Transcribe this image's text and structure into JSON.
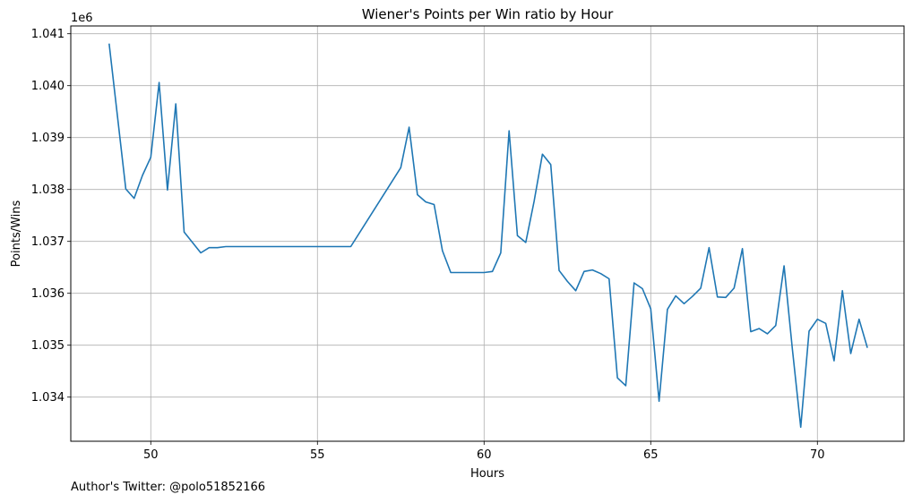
{
  "chart_data": {
    "type": "line",
    "title": "Wiener's Points per Win ratio by Hour",
    "xlabel": "Hours",
    "ylabel": "Points/Wins",
    "y_offset_label": "1e6",
    "y_scale_factor": 1000000,
    "xlim": [
      47.6,
      72.6
    ],
    "ylim": [
      1033150,
      1041150
    ],
    "x_ticks": [
      50,
      55,
      60,
      65,
      70
    ],
    "y_ticks": [
      1034000,
      1035000,
      1036000,
      1037000,
      1038000,
      1039000,
      1040000,
      1041000
    ],
    "y_tick_labels": [
      "1.034",
      "1.035",
      "1.036",
      "1.037",
      "1.038",
      "1.039",
      "1.040",
      "1.041"
    ],
    "grid": true,
    "line_color": "#1f77b4",
    "series": [
      {
        "x": [
          48.75,
          49.25,
          49.5,
          49.75,
          50.0,
          50.25,
          50.5,
          50.75,
          51.0,
          51.5,
          51.75,
          52.0,
          52.25,
          56.0,
          57.5,
          57.75,
          58.0,
          58.25,
          58.5,
          58.75,
          59.0,
          60.0,
          60.25,
          60.5,
          60.75,
          61.0,
          61.25,
          61.5,
          61.75,
          62.0,
          62.25,
          62.5,
          62.75,
          63.0,
          63.25,
          63.5,
          63.75,
          64.0,
          64.25,
          64.5,
          64.75,
          65.0,
          65.25,
          65.5,
          65.75,
          66.0,
          66.25,
          66.5,
          66.75,
          67.0,
          67.25,
          67.5,
          67.75,
          68.0,
          68.25,
          68.5,
          68.75,
          69.0,
          69.25,
          69.5,
          69.75,
          70.0,
          70.25,
          70.5,
          70.75,
          71.0,
          71.25,
          71.5
        ],
        "y": [
          1040810,
          1038010,
          1037830,
          1038270,
          1038620,
          1040060,
          1037990,
          1039650,
          1037180,
          1036780,
          1036880,
          1036880,
          1036900,
          1036900,
          1038420,
          1039200,
          1037900,
          1037760,
          1037710,
          1036820,
          1036400,
          1036400,
          1036420,
          1036780,
          1039130,
          1037110,
          1036980,
          1037770,
          1038680,
          1038480,
          1036440,
          1036230,
          1036050,
          1036420,
          1036450,
          1036380,
          1036280,
          1034370,
          1034220,
          1036200,
          1036090,
          1035700,
          1033920,
          1035690,
          1035950,
          1035800,
          1035940,
          1036100,
          1036880,
          1035930,
          1035920,
          1036100,
          1036860,
          1035260,
          1035320,
          1035220,
          1035380,
          1036530,
          1034920,
          1033420,
          1035270,
          1035500,
          1035420,
          1034700,
          1036050,
          1034840,
          1035500,
          1034950
        ]
      }
    ]
  },
  "footer": {
    "credit": "Author's Twitter: @polo51852166"
  }
}
